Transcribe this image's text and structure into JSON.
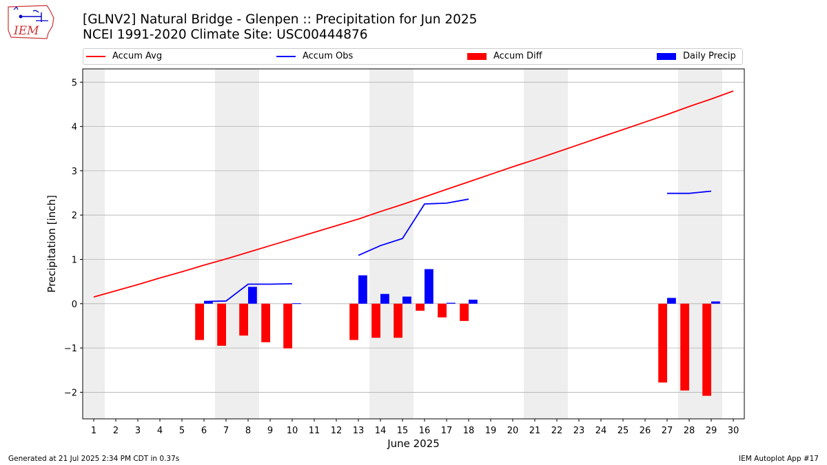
{
  "header": {
    "title_line1": "[GLNV2] Natural Bridge - Glenpen :: Precipitation for Jun 2025",
    "title_line2": "NCEI 1991-2020 Climate Site: USC00444876",
    "logo_text": "IEM"
  },
  "footer": {
    "generated": "Generated at 21 Jul 2025 2:34 PM CDT in 0.37s",
    "app": "IEM Autoplot App #17"
  },
  "colors": {
    "accum_avg": "#ff0000",
    "accum_obs": "#0000ff",
    "accum_diff": "#ff0000",
    "daily_precip": "#0000ff",
    "weekend": "#eeeeee",
    "grid": "#b0b0b0"
  },
  "chart_data": {
    "type": "bar",
    "xlabel": "June 2025",
    "ylabel": "Precipitation [inch]",
    "xlim": [
      0.5,
      30.5
    ],
    "ylim": [
      -2.6,
      5.3
    ],
    "yticks": [
      -2,
      -1,
      0,
      1,
      2,
      3,
      4,
      5
    ],
    "ytick_labels": [
      "−2",
      "−1",
      "0",
      "1",
      "2",
      "3",
      "4",
      "5"
    ],
    "xticks": [
      1,
      2,
      3,
      4,
      5,
      6,
      7,
      8,
      9,
      10,
      11,
      12,
      13,
      14,
      15,
      16,
      17,
      18,
      19,
      20,
      21,
      22,
      23,
      24,
      25,
      26,
      27,
      28,
      29,
      30
    ],
    "grid": "horizontal",
    "weekend_bands": [
      [
        0.5,
        1.5
      ],
      [
        6.5,
        8.5
      ],
      [
        13.5,
        15.5
      ],
      [
        20.5,
        22.5
      ],
      [
        27.5,
        29.5
      ]
    ],
    "legend": [
      "Accum Avg",
      "Accum Obs",
      "Accum Diff",
      "Daily Precip"
    ],
    "legend_position": "top",
    "series": [
      {
        "name": "Accum Avg",
        "kind": "line",
        "x": [
          1,
          2,
          3,
          4,
          5,
          6,
          7,
          8,
          9,
          10,
          11,
          12,
          13,
          14,
          15,
          16,
          17,
          18,
          19,
          20,
          21,
          22,
          23,
          24,
          25,
          26,
          27,
          28,
          29,
          30
        ],
        "values": [
          0.15,
          0.29,
          0.43,
          0.58,
          0.72,
          0.87,
          1.01,
          1.16,
          1.31,
          1.46,
          1.61,
          1.76,
          1.91,
          2.08,
          2.24,
          2.41,
          2.58,
          2.75,
          2.92,
          3.09,
          3.25,
          3.42,
          3.59,
          3.76,
          3.93,
          4.1,
          4.27,
          4.45,
          4.62,
          4.8
        ]
      },
      {
        "name": "Accum Obs",
        "kind": "line",
        "segments": [
          {
            "x": [
              6,
              7,
              8,
              9,
              10
            ],
            "values": [
              0.05,
              0.06,
              0.44,
              0.44,
              0.45
            ]
          },
          {
            "x": [
              13,
              14,
              15,
              16,
              17,
              18
            ],
            "values": [
              1.09,
              1.31,
              1.47,
              2.25,
              2.27,
              2.36
            ]
          },
          {
            "x": [
              27,
              28,
              29
            ],
            "values": [
              2.49,
              2.49,
              2.54
            ]
          }
        ]
      },
      {
        "name": "Accum Diff",
        "kind": "bar",
        "x": [
          6,
          7,
          8,
          9,
          10,
          13,
          14,
          15,
          16,
          17,
          18,
          27,
          28,
          29
        ],
        "values": [
          -0.82,
          -0.95,
          -0.72,
          -0.87,
          -1.01,
          -0.82,
          -0.77,
          -0.77,
          -0.16,
          -0.31,
          -0.39,
          -1.78,
          -1.96,
          -2.08
        ]
      },
      {
        "name": "Daily Precip",
        "kind": "bar",
        "x": [
          6,
          8,
          10,
          13,
          14,
          15,
          16,
          17,
          18,
          27,
          29
        ],
        "values": [
          0.05,
          0.38,
          0.01,
          0.64,
          0.22,
          0.16,
          0.78,
          0.02,
          0.09,
          0.13,
          0.05
        ]
      }
    ]
  }
}
